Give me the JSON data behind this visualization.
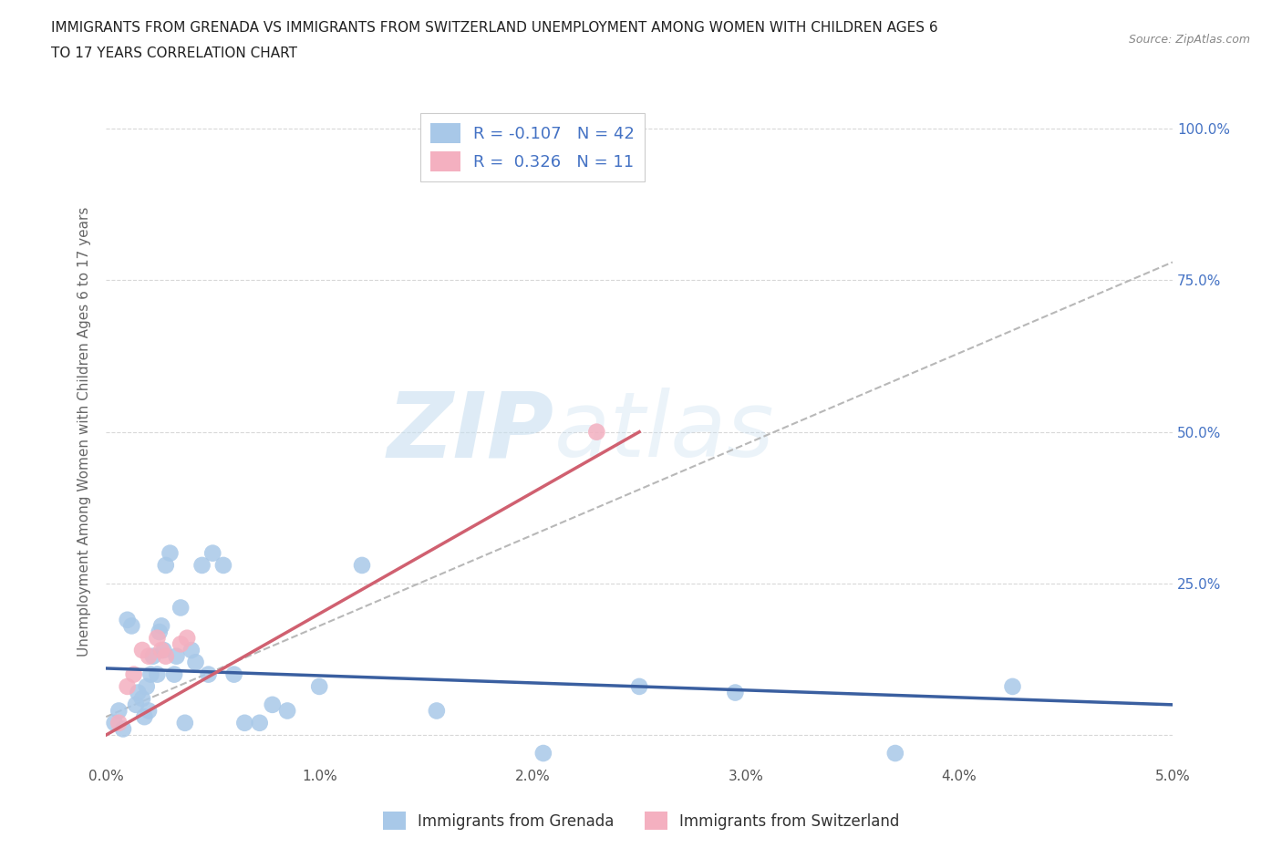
{
  "title_line1": "IMMIGRANTS FROM GRENADA VS IMMIGRANTS FROM SWITZERLAND UNEMPLOYMENT AMONG WOMEN WITH CHILDREN AGES 6",
  "title_line2": "TO 17 YEARS CORRELATION CHART",
  "source": "Source: ZipAtlas.com",
  "ylabel": "Unemployment Among Women with Children Ages 6 to 17 years",
  "xlim": [
    0.0,
    5.0
  ],
  "ylim": [
    -5.0,
    105.0
  ],
  "xticks": [
    0.0,
    1.0,
    2.0,
    3.0,
    4.0,
    5.0
  ],
  "xtick_labels": [
    "0.0%",
    "1.0%",
    "2.0%",
    "3.0%",
    "4.0%",
    "5.0%"
  ],
  "yticks": [
    0.0,
    25.0,
    50.0,
    75.0,
    100.0
  ],
  "ytick_labels_right": [
    "",
    "25.0%",
    "50.0%",
    "75.0%",
    "100.0%"
  ],
  "grenada_color": "#a8c8e8",
  "switzerland_color": "#f4b0c0",
  "grenada_line_color": "#3a5fa0",
  "switzerland_line_color": "#d06070",
  "dashed_line_color": "#b8b8b8",
  "grenada_R": -0.107,
  "grenada_N": 42,
  "switzerland_R": 0.326,
  "switzerland_N": 11,
  "watermark_zip": "ZIP",
  "watermark_atlas": "atlas",
  "legend_label1": "Immigrants from Grenada",
  "legend_label2": "Immigrants from Switzerland",
  "grenada_x": [
    0.04,
    0.06,
    0.08,
    0.1,
    0.12,
    0.14,
    0.15,
    0.17,
    0.18,
    0.19,
    0.2,
    0.21,
    0.22,
    0.24,
    0.25,
    0.26,
    0.27,
    0.28,
    0.3,
    0.32,
    0.33,
    0.35,
    0.37,
    0.4,
    0.42,
    0.45,
    0.48,
    0.5,
    0.55,
    0.6,
    0.65,
    0.72,
    0.78,
    0.85,
    1.0,
    1.2,
    1.55,
    2.05,
    2.5,
    2.95,
    4.25,
    3.7
  ],
  "grenada_y": [
    2,
    4,
    1,
    19,
    18,
    5,
    7,
    6,
    3,
    8,
    4,
    10,
    13,
    10,
    17,
    18,
    14,
    28,
    30,
    10,
    13,
    21,
    2,
    14,
    12,
    28,
    10,
    30,
    28,
    10,
    2,
    2,
    5,
    4,
    8,
    28,
    4,
    -3,
    8,
    7,
    8,
    -3
  ],
  "switzerland_x": [
    0.06,
    0.1,
    0.13,
    0.17,
    0.2,
    0.24,
    0.26,
    0.28,
    0.35,
    0.38,
    2.3
  ],
  "switzerland_y": [
    2,
    8,
    10,
    14,
    13,
    16,
    14,
    13,
    15,
    16,
    50
  ],
  "background_color": "#ffffff",
  "grid_color": "#d8d8d8",
  "dashed_x0": 0.0,
  "dashed_x1": 5.0,
  "dashed_y0": 3.0,
  "dashed_y1": 78.0,
  "blue_trend_x0": 0.0,
  "blue_trend_x1": 5.0,
  "blue_trend_y0": 11.0,
  "blue_trend_y1": 5.0,
  "pink_trend_x0": 0.0,
  "pink_trend_x1": 2.5,
  "pink_trend_y0": 0.0,
  "pink_trend_y1": 50.0
}
